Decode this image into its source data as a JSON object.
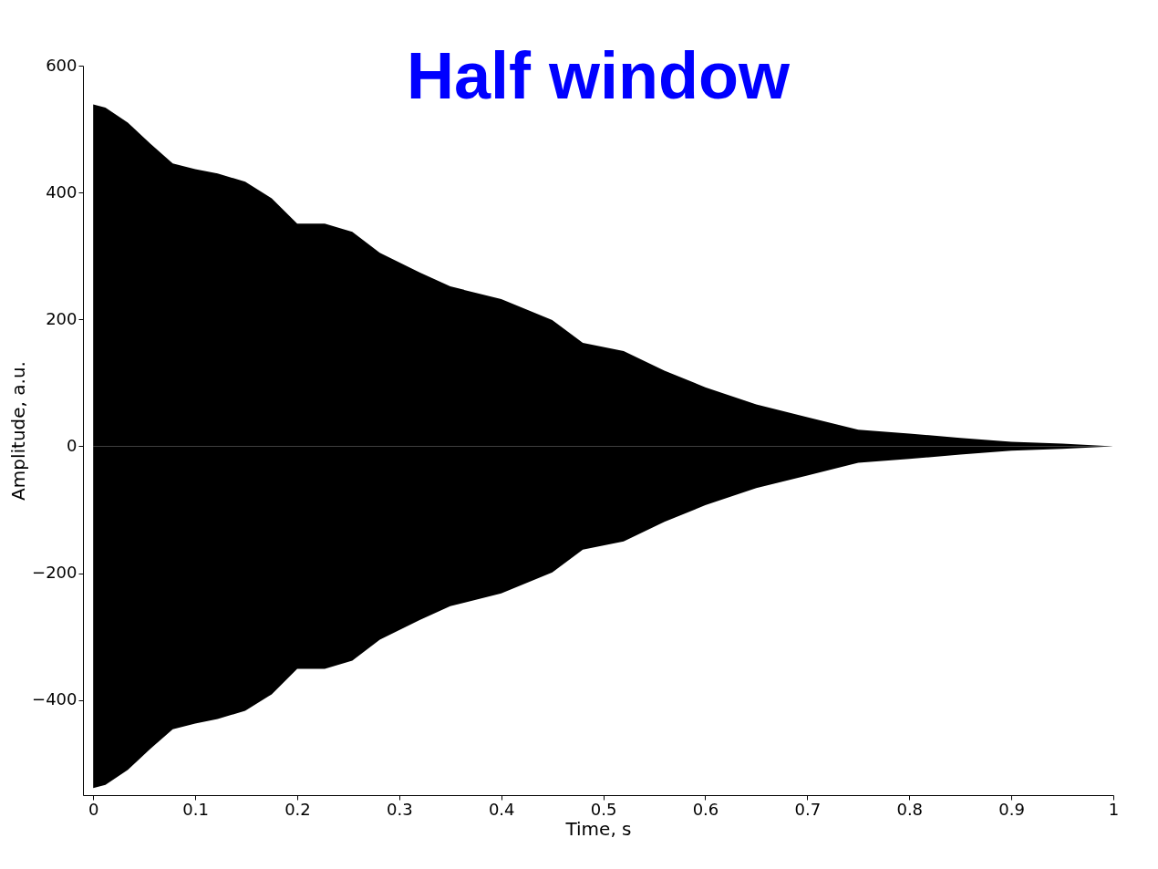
{
  "chart_data": {
    "type": "area",
    "title": "Half window",
    "xlabel": "Time, s",
    "ylabel": "Amplitude, a.u.",
    "x": [
      0,
      0.012,
      0.034,
      0.056,
      0.078,
      0.1,
      0.122,
      0.149,
      0.175,
      0.2,
      0.227,
      0.254,
      0.281,
      0.32,
      0.35,
      0.4,
      0.45,
      0.48,
      0.52,
      0.56,
      0.6,
      0.65,
      0.7,
      0.75,
      0.8,
      0.85,
      0.9,
      0.95,
      1.0
    ],
    "series": [
      {
        "color": "#000000",
        "values": [
          539,
          534,
          510,
          477,
          446,
          437,
          430,
          417,
          391,
          351,
          351,
          338,
          305,
          274,
          252,
          232,
          199,
          163,
          150,
          119,
          93,
          66,
          46,
          26,
          20,
          13,
          7,
          4,
          0
        ]
      },
      {
        "color": "#000000",
        "values": [
          -539,
          -534,
          -510,
          -477,
          -446,
          -437,
          -430,
          -417,
          -391,
          -351,
          -351,
          -338,
          -305,
          -274,
          -252,
          -232,
          -199,
          -163,
          -150,
          -119,
          -93,
          -66,
          -46,
          -26,
          -20,
          -13,
          -7,
          -4,
          0
        ]
      }
    ],
    "xlim": [
      -0.01,
      1
    ],
    "ylim": [
      -550,
      600
    ],
    "xticks": [
      0,
      0.1,
      0.2,
      0.3,
      0.4,
      0.5,
      0.6,
      0.7,
      0.8,
      0.9,
      1
    ],
    "yticks": [
      -400,
      -200,
      0,
      200,
      400,
      600
    ],
    "grid": false
  }
}
